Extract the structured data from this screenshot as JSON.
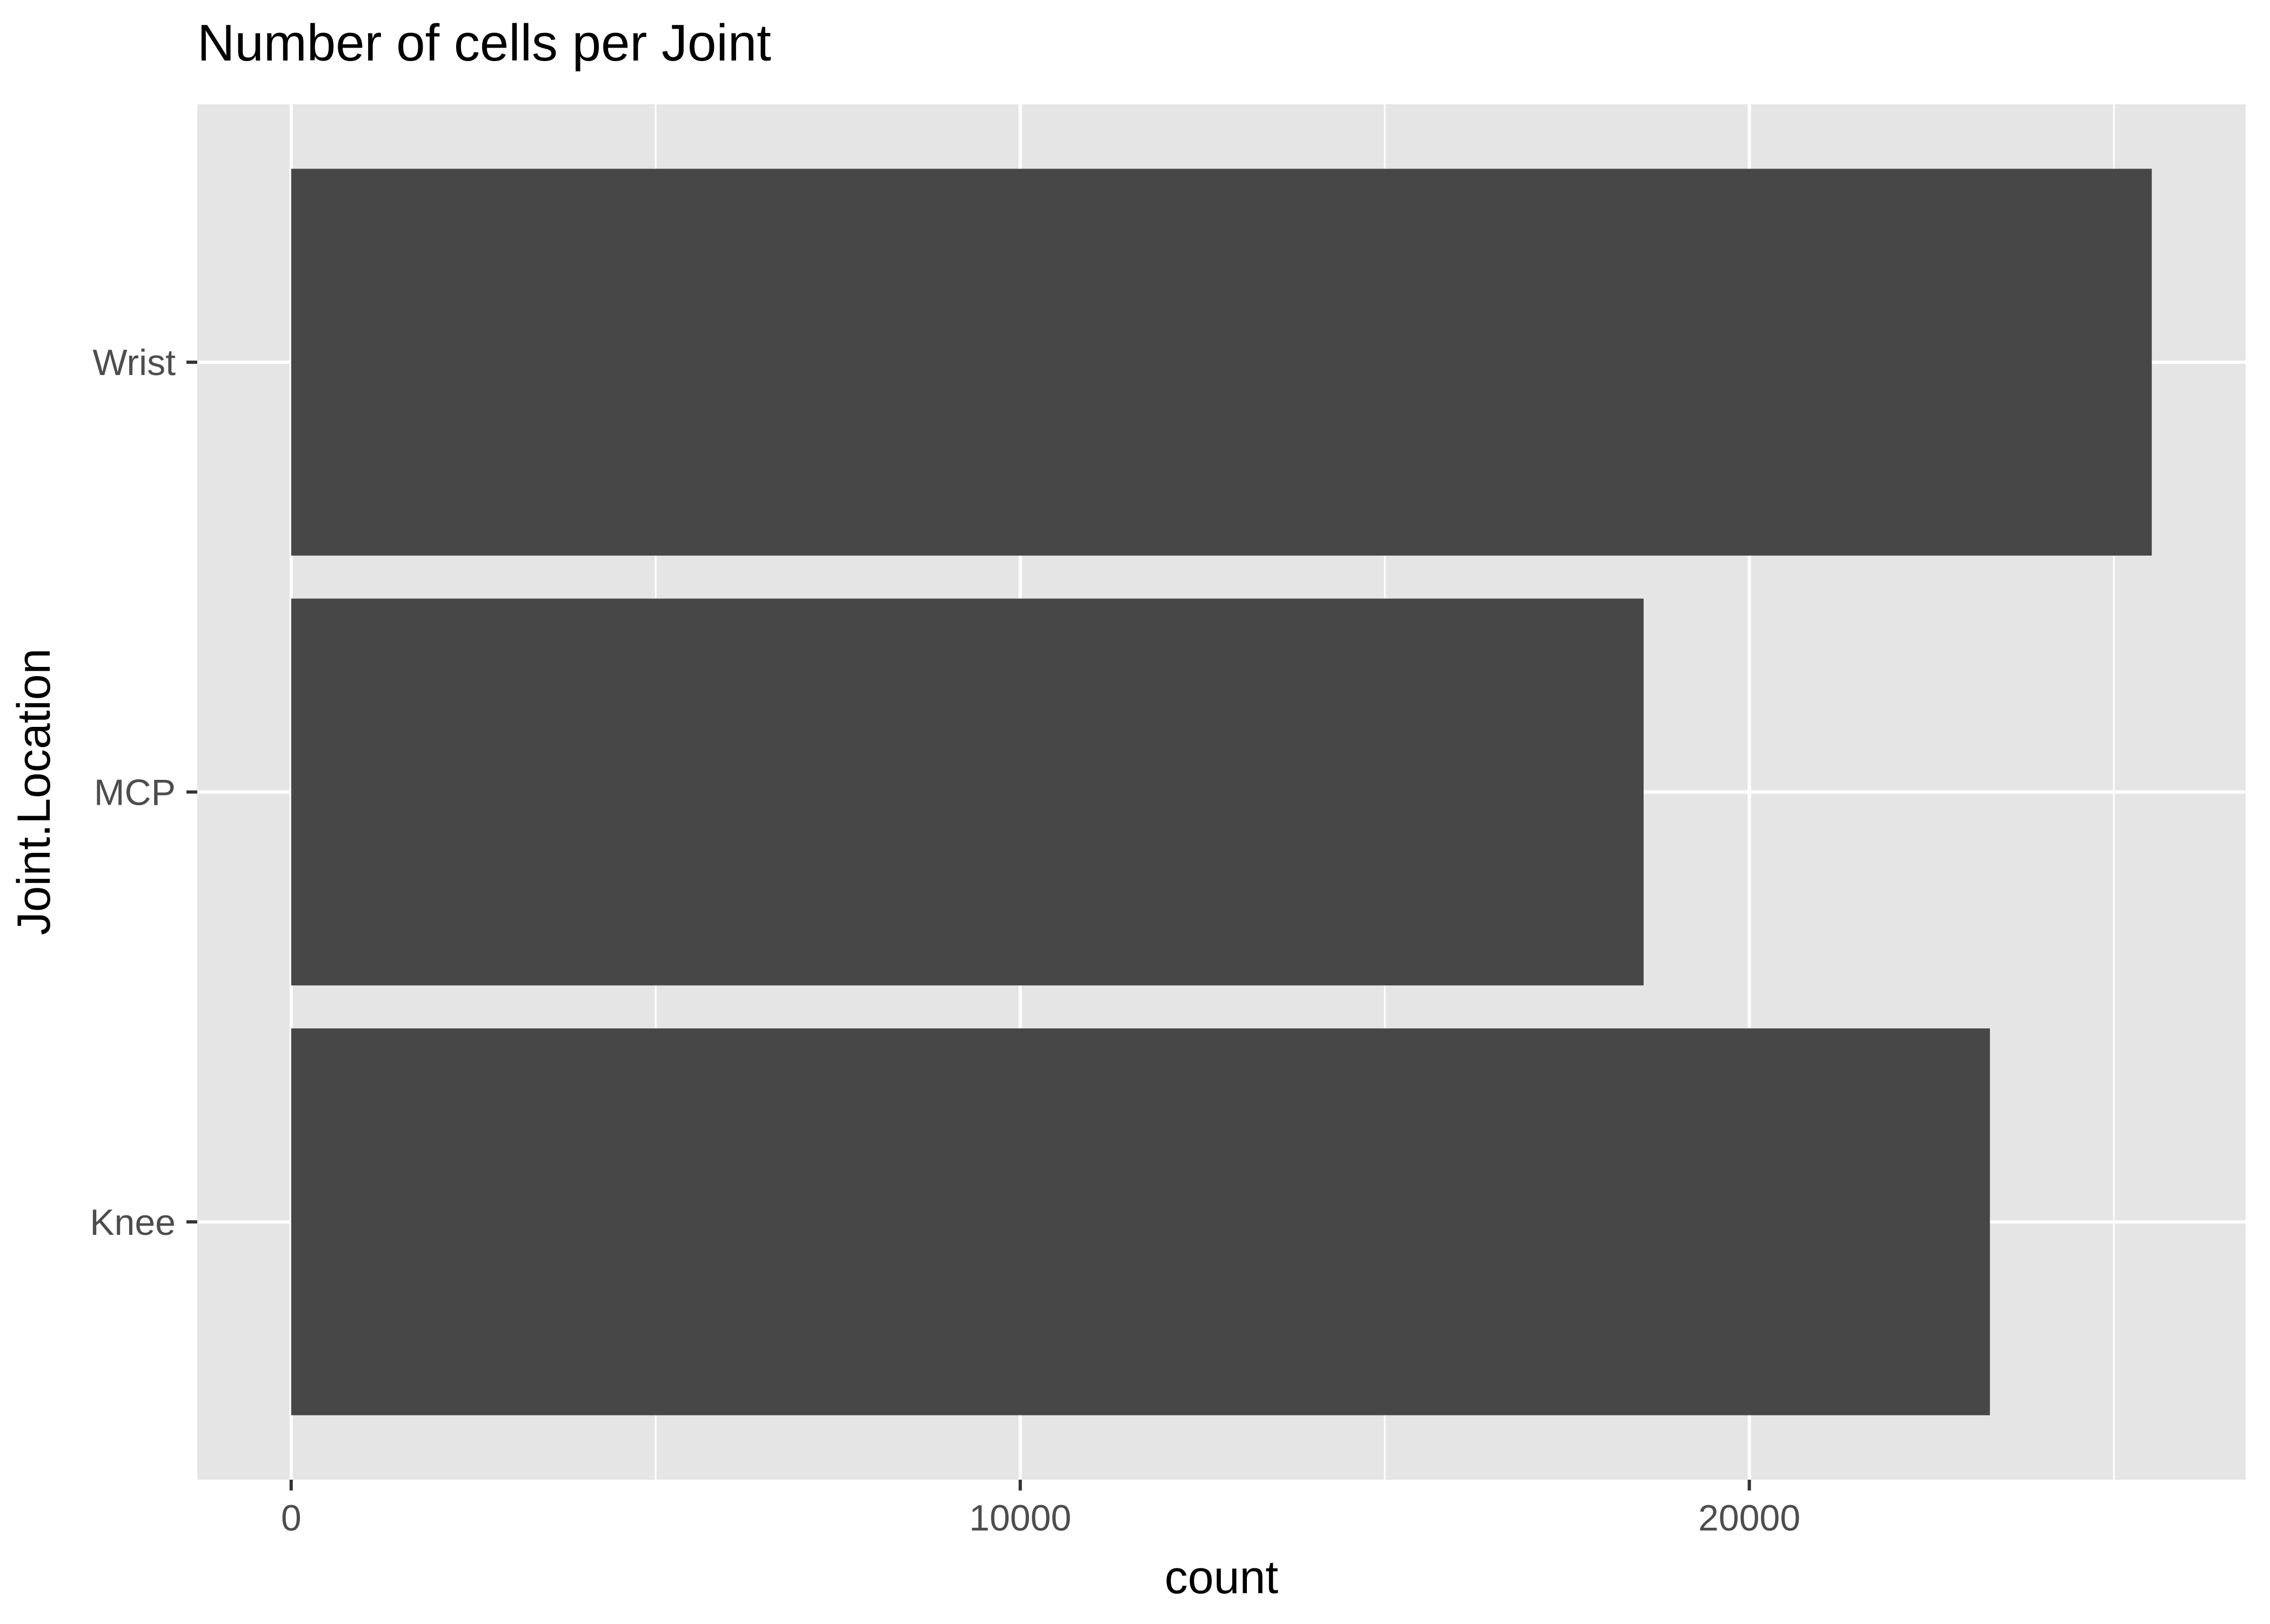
{
  "chart_data": {
    "type": "bar",
    "orientation": "horizontal",
    "title": "Number of cells per Joint",
    "xlabel": "count",
    "ylabel": "Joint.Location",
    "categories": [
      "Knee",
      "MCP",
      "Wrist"
    ],
    "values": [
      23300,
      18550,
      25520
    ],
    "xlim": [
      -1288,
      26808
    ],
    "x_ticks": [
      0,
      10000,
      20000
    ],
    "x_tick_labels": [
      "0",
      "10000",
      "20000"
    ],
    "grid": true,
    "legend": "none",
    "colors": {
      "bar": "#474747",
      "panel": "#e5e5e5",
      "grid": "#ffffff",
      "text": "#000000",
      "tick_text": "#4d4d4d"
    }
  }
}
